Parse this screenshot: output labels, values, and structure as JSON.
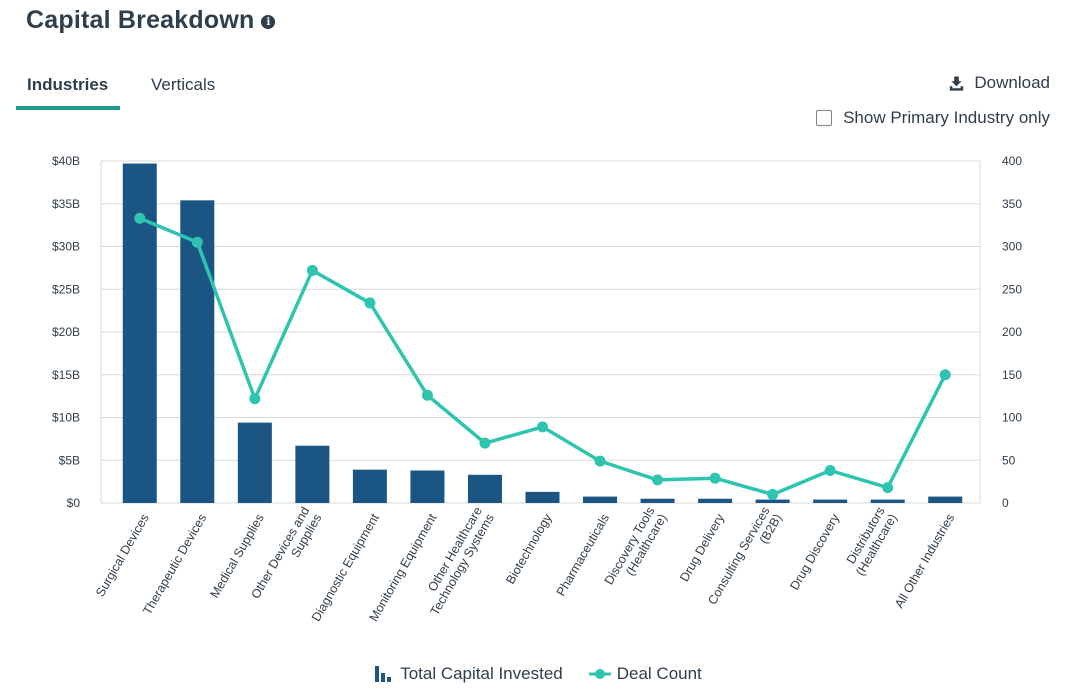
{
  "header": {
    "title": "Capital Breakdown",
    "info_icon": "info-icon"
  },
  "tabs": [
    {
      "label": "Industries",
      "active": true
    },
    {
      "label": "Verticals",
      "active": false
    }
  ],
  "toolbar": {
    "download_label": "Download",
    "download_icon": "download-icon",
    "primary_only_label": "Show Primary Industry only",
    "primary_only_checked": false
  },
  "colors": {
    "bar": "#1a5584",
    "line": "#2ec4b0",
    "grid": "#d9d9d9",
    "text": "#2f3e4b",
    "tab_underline": "#1f9a8a"
  },
  "chart_data": {
    "type": "bar+line",
    "categories": [
      "Surgical Devices",
      "Therapeutic Devices",
      "Medical Supplies",
      "Other Devices and Supplies",
      "Diagnostic Equipment",
      "Monitoring Equipment",
      "Other Healthcare Technology Systems",
      "Biotechnology",
      "Pharmaceuticals",
      "Discovery Tools (Healthcare)",
      "Drug Delivery",
      "Consulting Services (B2B)",
      "Drug Discovery",
      "Distributors (Healthcare)",
      "All Other Industries"
    ],
    "category_label_lines": [
      [
        "Surgical Devices"
      ],
      [
        "Therapeutic Devices"
      ],
      [
        "Medical Supplies"
      ],
      [
        "Other Devices and",
        "Supplies"
      ],
      [
        "Diagnostic Equipment"
      ],
      [
        "Monitoring Equipment"
      ],
      [
        "Other Healthcare",
        "Technology Systems"
      ],
      [
        "Biotechnology"
      ],
      [
        "Pharmaceuticals"
      ],
      [
        "Discovery Tools",
        "(Healthcare)"
      ],
      [
        "Drug Delivery"
      ],
      [
        "Consulting Services",
        "(B2B)"
      ],
      [
        "Drug Discovery"
      ],
      [
        "Distributors",
        "(Healthcare)"
      ],
      [
        "All Other Industries"
      ]
    ],
    "series": [
      {
        "name": "Total Capital Invested",
        "type": "bar",
        "axis": "left",
        "unit": "$B",
        "values": [
          39.7,
          35.4,
          9.4,
          6.7,
          3.9,
          3.8,
          3.3,
          1.3,
          0.75,
          0.5,
          0.5,
          0.4,
          0.4,
          0.4,
          0.75
        ]
      },
      {
        "name": "Deal Count",
        "type": "line",
        "axis": "right",
        "values": [
          333,
          305,
          122,
          272,
          234,
          126,
          70,
          89,
          49,
          27,
          29,
          10,
          38,
          18,
          150
        ]
      }
    ],
    "y_left": {
      "min": 0,
      "max": 40,
      "ticks": [
        "$0",
        "$5B",
        "$10B",
        "$15B",
        "$20B",
        "$25B",
        "$30B",
        "$35B",
        "$40B"
      ]
    },
    "y_right": {
      "min": 0,
      "max": 400,
      "ticks": [
        "0",
        "50",
        "100",
        "150",
        "200",
        "250",
        "300",
        "350",
        "400"
      ]
    },
    "grid": true,
    "legend_position": "bottom-center",
    "legend": [
      "Total Capital Invested",
      "Deal Count"
    ]
  }
}
